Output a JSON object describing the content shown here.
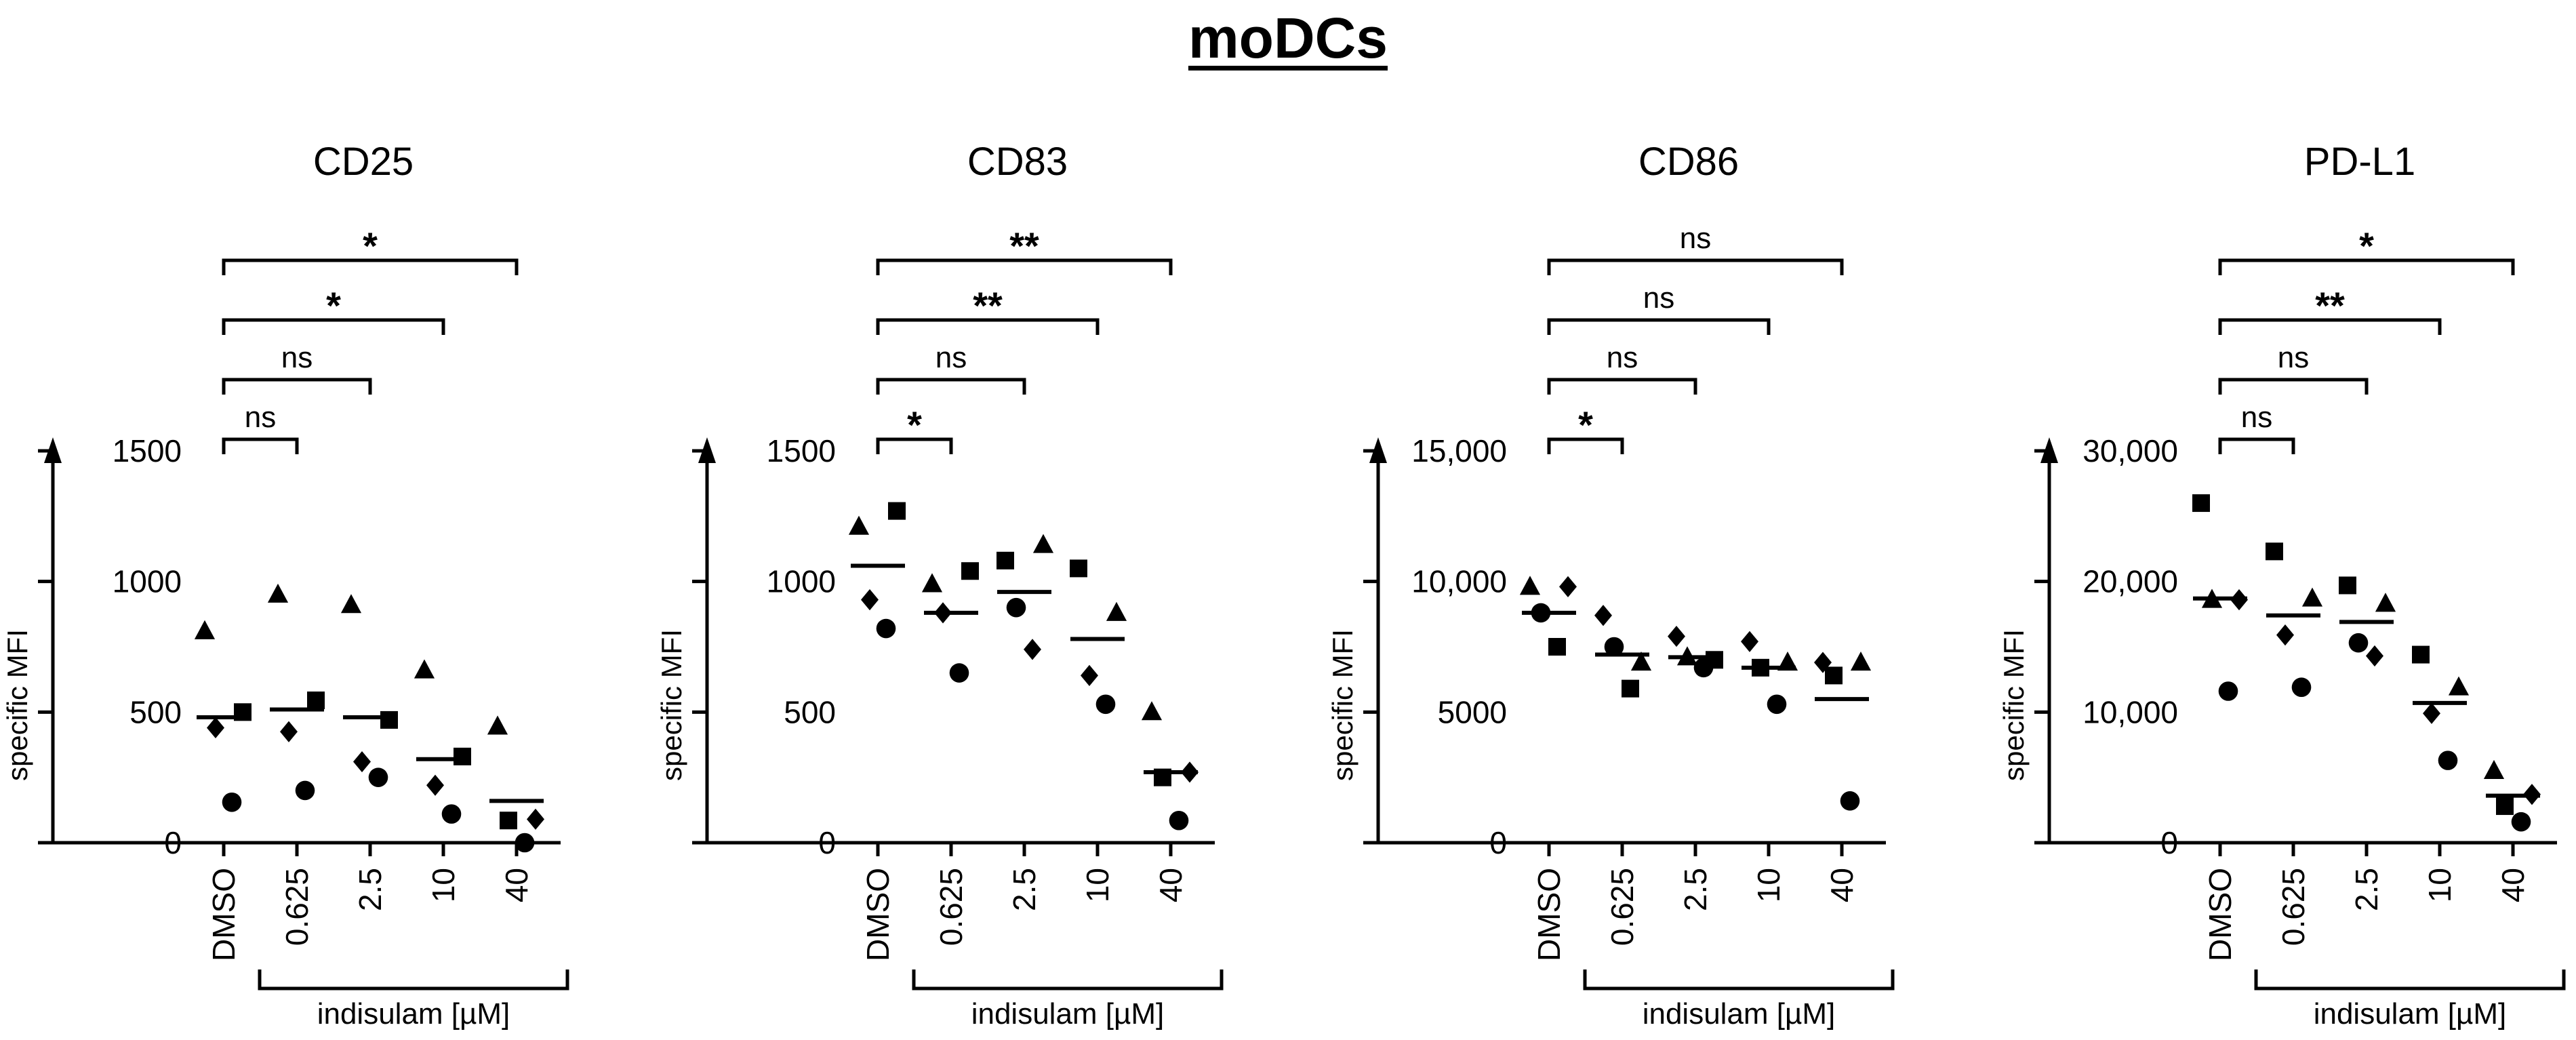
{
  "figure_title": "moDCs",
  "chart_data": [
    {
      "type": "scatter",
      "title": "CD25",
      "ylabel": "specific MFI",
      "xlabel": "indisulam [µM]",
      "categories": [
        "DMSO",
        "0.625",
        "2.5",
        "10",
        "40"
      ],
      "ylim": [
        0,
        1500
      ],
      "yticks": [
        0,
        500,
        1000,
        1500
      ],
      "ytick_labels": [
        "0",
        "500",
        "1000",
        "1500"
      ],
      "points": [
        {
          "cat": 0,
          "marker": "triangle",
          "value": 810
        },
        {
          "cat": 0,
          "marker": "square",
          "value": 500
        },
        {
          "cat": 0,
          "marker": "diamond",
          "value": 440
        },
        {
          "cat": 0,
          "marker": "circle",
          "value": 155
        },
        {
          "cat": 1,
          "marker": "triangle",
          "value": 950
        },
        {
          "cat": 1,
          "marker": "square",
          "value": 545
        },
        {
          "cat": 1,
          "marker": "diamond",
          "value": 425
        },
        {
          "cat": 1,
          "marker": "circle",
          "value": 200
        },
        {
          "cat": 2,
          "marker": "triangle",
          "value": 910
        },
        {
          "cat": 2,
          "marker": "square",
          "value": 470
        },
        {
          "cat": 2,
          "marker": "diamond",
          "value": 310
        },
        {
          "cat": 2,
          "marker": "circle",
          "value": 250
        },
        {
          "cat": 3,
          "marker": "triangle",
          "value": 660
        },
        {
          "cat": 3,
          "marker": "square",
          "value": 330
        },
        {
          "cat": 3,
          "marker": "diamond",
          "value": 220
        },
        {
          "cat": 3,
          "marker": "circle",
          "value": 110
        },
        {
          "cat": 4,
          "marker": "triangle",
          "value": 445
        },
        {
          "cat": 4,
          "marker": "diamond",
          "value": 90
        },
        {
          "cat": 4,
          "marker": "square",
          "value": 85
        },
        {
          "cat": 4,
          "marker": "circle",
          "value": 0
        }
      ],
      "means": [
        480,
        510,
        480,
        320,
        160
      ],
      "comparisons": [
        {
          "from": 0,
          "to": 1,
          "label": "ns"
        },
        {
          "from": 0,
          "to": 2,
          "label": "ns"
        },
        {
          "from": 0,
          "to": 3,
          "label": "*"
        },
        {
          "from": 0,
          "to": 4,
          "label": "*"
        }
      ]
    },
    {
      "type": "scatter",
      "title": "CD83",
      "ylabel": "specific MFI",
      "xlabel": "indisulam [µM]",
      "categories": [
        "DMSO",
        "0.625",
        "2.5",
        "10",
        "40"
      ],
      "ylim": [
        0,
        1500
      ],
      "yticks": [
        0,
        500,
        1000,
        1500
      ],
      "ytick_labels": [
        "0",
        "500",
        "1000",
        "1500"
      ],
      "points": [
        {
          "cat": 0,
          "marker": "triangle",
          "value": 1210
        },
        {
          "cat": 0,
          "marker": "square",
          "value": 1270
        },
        {
          "cat": 0,
          "marker": "diamond",
          "value": 930
        },
        {
          "cat": 0,
          "marker": "circle",
          "value": 820
        },
        {
          "cat": 1,
          "marker": "triangle",
          "value": 990
        },
        {
          "cat": 1,
          "marker": "square",
          "value": 1040
        },
        {
          "cat": 1,
          "marker": "diamond",
          "value": 880
        },
        {
          "cat": 1,
          "marker": "circle",
          "value": 650
        },
        {
          "cat": 2,
          "marker": "square",
          "value": 1080
        },
        {
          "cat": 2,
          "marker": "triangle",
          "value": 1140
        },
        {
          "cat": 2,
          "marker": "circle",
          "value": 900
        },
        {
          "cat": 2,
          "marker": "diamond",
          "value": 740
        },
        {
          "cat": 3,
          "marker": "square",
          "value": 1050
        },
        {
          "cat": 3,
          "marker": "triangle",
          "value": 880
        },
        {
          "cat": 3,
          "marker": "diamond",
          "value": 640
        },
        {
          "cat": 3,
          "marker": "circle",
          "value": 530
        },
        {
          "cat": 4,
          "marker": "triangle",
          "value": 500
        },
        {
          "cat": 4,
          "marker": "diamond",
          "value": 270
        },
        {
          "cat": 4,
          "marker": "square",
          "value": 250
        },
        {
          "cat": 4,
          "marker": "circle",
          "value": 85
        }
      ],
      "means": [
        1060,
        880,
        960,
        780,
        270
      ],
      "comparisons": [
        {
          "from": 0,
          "to": 1,
          "label": "*"
        },
        {
          "from": 0,
          "to": 2,
          "label": "ns"
        },
        {
          "from": 0,
          "to": 3,
          "label": "**"
        },
        {
          "from": 0,
          "to": 4,
          "label": "**"
        }
      ]
    },
    {
      "type": "scatter",
      "title": "CD86",
      "ylabel": "specific MFI",
      "xlabel": "indisulam [µM]",
      "categories": [
        "DMSO",
        "0.625",
        "2.5",
        "10",
        "40"
      ],
      "ylim": [
        0,
        15000
      ],
      "yticks": [
        0,
        5000,
        10000,
        15000
      ],
      "ytick_labels": [
        "0",
        "5000",
        "10,000",
        "15,000"
      ],
      "points": [
        {
          "cat": 0,
          "marker": "triangle",
          "value": 9800
        },
        {
          "cat": 0,
          "marker": "diamond",
          "value": 9800
        },
        {
          "cat": 0,
          "marker": "circle",
          "value": 8800
        },
        {
          "cat": 0,
          "marker": "square",
          "value": 7500
        },
        {
          "cat": 1,
          "marker": "diamond",
          "value": 8700
        },
        {
          "cat": 1,
          "marker": "triangle",
          "value": 6900
        },
        {
          "cat": 1,
          "marker": "circle",
          "value": 7500
        },
        {
          "cat": 1,
          "marker": "square",
          "value": 5900
        },
        {
          "cat": 2,
          "marker": "diamond",
          "value": 7900
        },
        {
          "cat": 2,
          "marker": "square",
          "value": 7000
        },
        {
          "cat": 2,
          "marker": "triangle",
          "value": 7100
        },
        {
          "cat": 2,
          "marker": "circle",
          "value": 6700
        },
        {
          "cat": 3,
          "marker": "diamond",
          "value": 7700
        },
        {
          "cat": 3,
          "marker": "triangle",
          "value": 6900
        },
        {
          "cat": 3,
          "marker": "square",
          "value": 6700
        },
        {
          "cat": 3,
          "marker": "circle",
          "value": 5300
        },
        {
          "cat": 4,
          "marker": "diamond",
          "value": 6900
        },
        {
          "cat": 4,
          "marker": "triangle",
          "value": 6900
        },
        {
          "cat": 4,
          "marker": "square",
          "value": 6400
        },
        {
          "cat": 4,
          "marker": "circle",
          "value": 1600
        }
      ],
      "means": [
        8800,
        7200,
        7100,
        6700,
        5500
      ],
      "comparisons": [
        {
          "from": 0,
          "to": 1,
          "label": "*"
        },
        {
          "from": 0,
          "to": 2,
          "label": "ns"
        },
        {
          "from": 0,
          "to": 3,
          "label": "ns"
        },
        {
          "from": 0,
          "to": 4,
          "label": "ns"
        }
      ]
    },
    {
      "type": "scatter",
      "title": "PD-L1",
      "ylabel": "specific MFI",
      "xlabel": "indisulam [µM]",
      "categories": [
        "DMSO",
        "0.625",
        "2.5",
        "10",
        "40"
      ],
      "ylim": [
        0,
        30000
      ],
      "yticks": [
        0,
        10000,
        20000,
        30000
      ],
      "ytick_labels": [
        "0",
        "10,000",
        "20,000",
        "30,000"
      ],
      "points": [
        {
          "cat": 0,
          "marker": "square",
          "value": 26000
        },
        {
          "cat": 0,
          "marker": "diamond",
          "value": 18600
        },
        {
          "cat": 0,
          "marker": "triangle",
          "value": 18600
        },
        {
          "cat": 0,
          "marker": "circle",
          "value": 11600
        },
        {
          "cat": 1,
          "marker": "square",
          "value": 22300
        },
        {
          "cat": 1,
          "marker": "triangle",
          "value": 18700
        },
        {
          "cat": 1,
          "marker": "diamond",
          "value": 15900
        },
        {
          "cat": 1,
          "marker": "circle",
          "value": 11900
        },
        {
          "cat": 2,
          "marker": "square",
          "value": 19700
        },
        {
          "cat": 2,
          "marker": "triangle",
          "value": 18300
        },
        {
          "cat": 2,
          "marker": "circle",
          "value": 15300
        },
        {
          "cat": 2,
          "marker": "diamond",
          "value": 14300
        },
        {
          "cat": 3,
          "marker": "square",
          "value": 14400
        },
        {
          "cat": 3,
          "marker": "triangle",
          "value": 11900
        },
        {
          "cat": 3,
          "marker": "diamond",
          "value": 9900
        },
        {
          "cat": 3,
          "marker": "circle",
          "value": 6300
        },
        {
          "cat": 4,
          "marker": "triangle",
          "value": 5500
        },
        {
          "cat": 4,
          "marker": "diamond",
          "value": 3700
        },
        {
          "cat": 4,
          "marker": "square",
          "value": 2800
        },
        {
          "cat": 4,
          "marker": "circle",
          "value": 1600
        }
      ],
      "means": [
        18700,
        17400,
        16900,
        10700,
        3600
      ],
      "comparisons": [
        {
          "from": 0,
          "to": 1,
          "label": "ns"
        },
        {
          "from": 0,
          "to": 2,
          "label": "ns"
        },
        {
          "from": 0,
          "to": 3,
          "label": "**"
        },
        {
          "from": 0,
          "to": 4,
          "label": "*"
        }
      ]
    }
  ]
}
